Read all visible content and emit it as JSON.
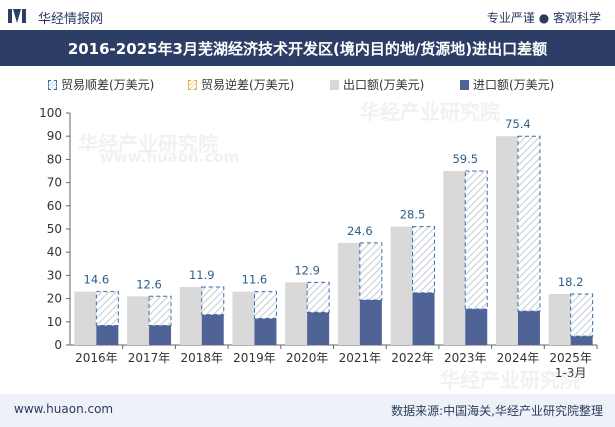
{
  "header": {
    "brand": "华经情报网",
    "tagline": "专业严谨 ● 客观科学",
    "title": "2016-2025年3月芜湖经济技术开发区(境内目的地/货源地)进出口差额"
  },
  "legend": {
    "surplus": "贸易顺差(万美元)",
    "deficit": "贸易逆差(万美元)",
    "exports": "出口额(万美元)",
    "imports": "进口额(万美元)"
  },
  "footer": {
    "site": "www.huaon.com",
    "source": "数据来源:中国海关,华经产业研究院整理"
  },
  "watermark": {
    "text_cn": "华经产业研究院",
    "text_url": "www.huaon.com"
  },
  "colors": {
    "exports": "#d9d9d9",
    "imports": "#4f6397",
    "surplus_border": "#3a6ea8",
    "title_bg": "#2c3e66",
    "data_label": "#2e5f8a"
  },
  "chart_data": {
    "type": "bar",
    "categories": [
      "2016年",
      "2017年",
      "2018年",
      "2019年",
      "2020年",
      "2021年",
      "2022年",
      "2023年",
      "2024年",
      "2025年\n1-3月"
    ],
    "ylim": [
      0,
      100
    ],
    "yticks": [
      0,
      10,
      20,
      30,
      40,
      50,
      60,
      70,
      80,
      90,
      100
    ],
    "grid": false,
    "legend_position": "top",
    "series": [
      {
        "name": "出口额(万美元)",
        "values": [
          23,
          21,
          25,
          23,
          27,
          44,
          51,
          75,
          90,
          22
        ]
      },
      {
        "name": "进口额(万美元)",
        "values": [
          8.4,
          8.4,
          13.1,
          11.4,
          14.1,
          19.4,
          22.5,
          15.5,
          14.6,
          3.8
        ]
      },
      {
        "name": "贸易顺差(万美元)",
        "values": [
          14.6,
          12.6,
          11.9,
          11.6,
          12.9,
          24.6,
          28.5,
          59.5,
          75.4,
          18.2
        ]
      }
    ],
    "data_labels": [
      "14.6",
      "12.6",
      "11.9",
      "11.6",
      "12.9",
      "24.6",
      "28.5",
      "59.5",
      "75.4",
      "18.2"
    ]
  }
}
